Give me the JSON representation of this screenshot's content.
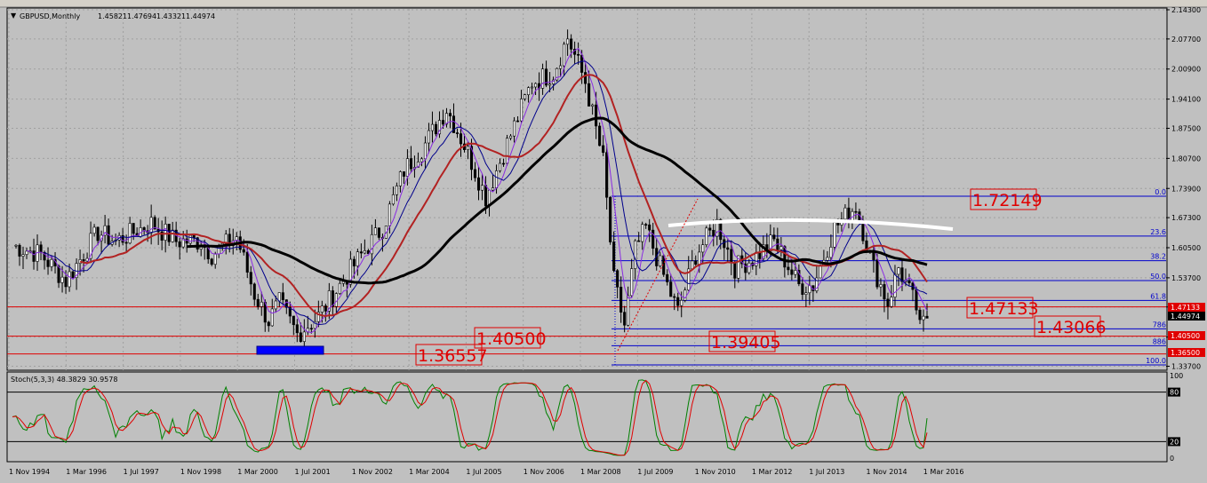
{
  "symbol_header": "GBPUSD,Monthly",
  "ohlc": {
    "open": "1.45821",
    "high": "1.47694",
    "low": "1.43321",
    "close": "1.44974"
  },
  "stoch_header": "Stoch(5,3,3) 48.3829 30.9578",
  "price_ticks": [
    "2.14300",
    "2.07700",
    "2.00900",
    "1.94100",
    "1.87500",
    "1.80700",
    "1.73900",
    "1.67300",
    "1.60500",
    "1.53700",
    "1.47100",
    "1.40300",
    "1.33700"
  ],
  "stoch_ticks": [
    "100",
    "80",
    "20",
    "0"
  ],
  "time_ticks": [
    "1 Nov 1994",
    "1 Mar 1996",
    "1 Jul 1997",
    "1 Nov 1998",
    "1 Mar 2000",
    "1 Jul 2001",
    "1 Nov 2002",
    "1 Mar 2004",
    "1 Jul 2005",
    "1 Nov 2006",
    "1 Mar 2008",
    "1 Jul 2009",
    "1 Nov 2010",
    "1 Mar 2012",
    "1 Jul 2013",
    "1 Nov 2014",
    "1 Mar 2016"
  ],
  "fib_levels": [
    "0.0",
    "23.6",
    "38.2",
    "50.0",
    "61.8",
    "786",
    "886",
    "100.0"
  ],
  "price_tags": [
    "1.47133",
    "1.44974",
    "1.40500",
    "1.36500"
  ],
  "annotations": [
    "1.72149",
    "1.47133",
    "1.43066",
    "1.40500",
    "1.39405",
    "1.36557"
  ],
  "colors": {
    "bg": "#c0c0c0",
    "bull": "#ffffff",
    "bear": "#000000",
    "ma_fast": "#8a2be2",
    "ma_mid": "#00008b",
    "ma_slow": "#b22222",
    "ma_long": "#000000",
    "hline": "#e00000",
    "fib": "#0000cc",
    "stoch_main": "#008000",
    "stoch_signal": "#e00000"
  },
  "chart_data": {
    "type": "candlestick",
    "title": "GBPUSD,Monthly",
    "x_range": [
      "1994-10",
      "2016-03"
    ],
    "y_range": [
      1.33,
      2.145
    ],
    "monthly_close_anchors": [
      {
        "d": "1994-10",
        "v": 1.61
      },
      {
        "d": "1995-06",
        "v": 1.59
      },
      {
        "d": "1996-01",
        "v": 1.53
      },
      {
        "d": "1996-10",
        "v": 1.64
      },
      {
        "d": "1997-03",
        "v": 1.62
      },
      {
        "d": "1998-01",
        "v": 1.66
      },
      {
        "d": "1998-08",
        "v": 1.62
      },
      {
        "d": "1999-03",
        "v": 1.62
      },
      {
        "d": "1999-06",
        "v": 1.59
      },
      {
        "d": "2000-01",
        "v": 1.63
      },
      {
        "d": "2000-06",
        "v": 1.5
      },
      {
        "d": "2000-10",
        "v": 1.44
      },
      {
        "d": "2001-01",
        "v": 1.48
      },
      {
        "d": "2001-06",
        "v": 1.41
      },
      {
        "d": "2001-12",
        "v": 1.45
      },
      {
        "d": "2002-06",
        "v": 1.52
      },
      {
        "d": "2003-01",
        "v": 1.6
      },
      {
        "d": "2003-06",
        "v": 1.65
      },
      {
        "d": "2003-12",
        "v": 1.78
      },
      {
        "d": "2004-06",
        "v": 1.84
      },
      {
        "d": "2004-12",
        "v": 1.92
      },
      {
        "d": "2005-06",
        "v": 1.82
      },
      {
        "d": "2005-11",
        "v": 1.72
      },
      {
        "d": "2006-06",
        "v": 1.86
      },
      {
        "d": "2006-12",
        "v": 1.98
      },
      {
        "d": "2007-06",
        "v": 2.0
      },
      {
        "d": "2007-10",
        "v": 2.08
      },
      {
        "d": "2008-03",
        "v": 1.98
      },
      {
        "d": "2008-08",
        "v": 1.8
      },
      {
        "d": "2008-11",
        "v": 1.53
      },
      {
        "d": "2009-02",
        "v": 1.43
      },
      {
        "d": "2009-05",
        "v": 1.6
      },
      {
        "d": "2009-08",
        "v": 1.65
      },
      {
        "d": "2010-02",
        "v": 1.52
      },
      {
        "d": "2010-05",
        "v": 1.46
      },
      {
        "d": "2010-10",
        "v": 1.59
      },
      {
        "d": "2011-04",
        "v": 1.66
      },
      {
        "d": "2011-09",
        "v": 1.56
      },
      {
        "d": "2012-02",
        "v": 1.58
      },
      {
        "d": "2012-08",
        "v": 1.62
      },
      {
        "d": "2013-03",
        "v": 1.52
      },
      {
        "d": "2013-07",
        "v": 1.52
      },
      {
        "d": "2014-01",
        "v": 1.65
      },
      {
        "d": "2014-07",
        "v": 1.7
      },
      {
        "d": "2014-12",
        "v": 1.56
      },
      {
        "d": "2015-04",
        "v": 1.48
      },
      {
        "d": "2015-07",
        "v": 1.56
      },
      {
        "d": "2015-12",
        "v": 1.47
      },
      {
        "d": "2016-01",
        "v": 1.42
      },
      {
        "d": "2016-03",
        "v": 1.45
      }
    ],
    "horizontal_lines": [
      1.47133,
      1.405,
      1.365
    ],
    "fibonacci_retracement": {
      "high": 1.72149,
      "low": 1.34,
      "levels": [
        "0.0",
        "23.6",
        "38.2",
        "50.0",
        "61.8",
        "786",
        "886",
        "100.0"
      ]
    },
    "stochastic": {
      "params": "5,3,3",
      "main": 48.3829,
      "signal": 30.9578,
      "levels": [
        80,
        20
      ],
      "range": [
        0,
        100
      ]
    }
  }
}
